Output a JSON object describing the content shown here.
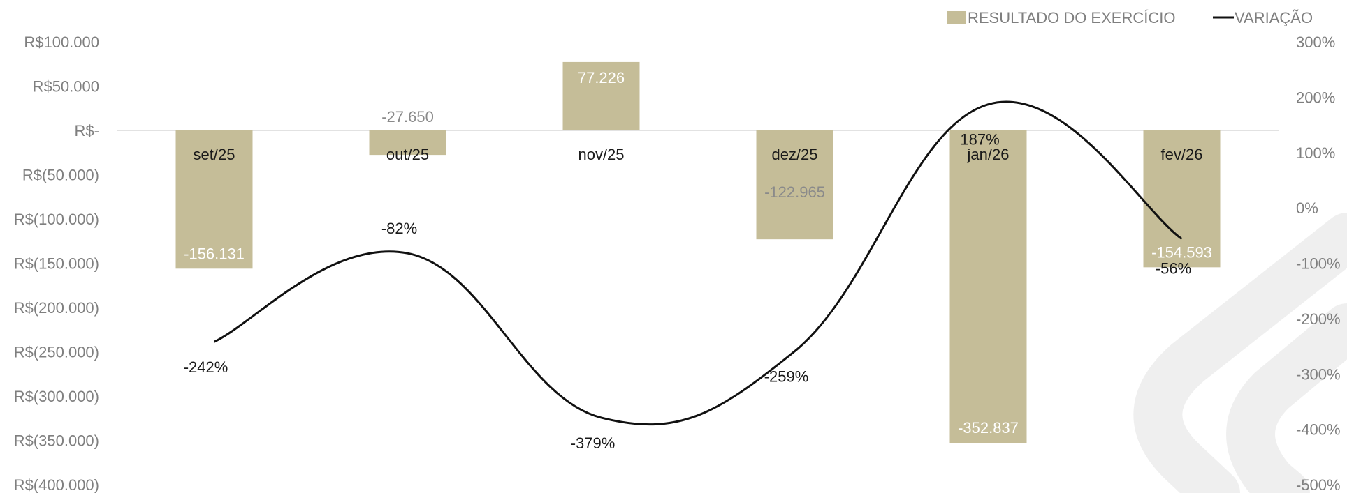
{
  "chart_data": {
    "type": "bar",
    "categories": [
      "set/25",
      "out/25",
      "nov/25",
      "dez/25",
      "jan/26",
      "fev/26"
    ],
    "series": [
      {
        "name": "RESULTADO DO EXERCÍCIO",
        "type": "bar",
        "axis": "left",
        "values": [
          -156131,
          -27650,
          77226,
          -122965,
          -352837,
          -154593
        ],
        "value_labels": [
          "-156.131",
          "-27.650",
          "77.226",
          "-122.965",
          "-352.837",
          "-154.593"
        ],
        "color": "#c5bd98"
      },
      {
        "name": "VARIAÇÃO",
        "type": "line",
        "axis": "right",
        "values": [
          -242,
          -82,
          -379,
          -259,
          187,
          -56
        ],
        "value_labels": [
          "-242%",
          "-82%",
          "-379%",
          "-259%",
          "187%",
          "-56%"
        ],
        "color": "#111111"
      }
    ],
    "y_left": {
      "ylim": [
        -400000,
        100000
      ],
      "ticks": [
        100000,
        50000,
        0,
        -50000,
        -100000,
        -150000,
        -200000,
        -250000,
        -300000,
        -350000,
        -400000
      ],
      "tick_labels": [
        "R$100.000",
        "R$50.000",
        "R$-",
        "R$(50.000)",
        "R$(100.000)",
        "R$(150.000)",
        "R$(200.000)",
        "R$(250.000)",
        "R$(300.000)",
        "R$(350.000)",
        "R$(400.000)"
      ]
    },
    "y_right": {
      "ylim": [
        -500,
        300
      ],
      "ticks": [
        300,
        200,
        100,
        0,
        -100,
        -200,
        -300,
        -400,
        -500
      ],
      "tick_labels": [
        "300%",
        "200%",
        "100%",
        "0%",
        "-100%",
        "-200%",
        "-300%",
        "-400%",
        "-500%"
      ]
    },
    "legend": {
      "position": "top-right",
      "items": [
        {
          "label": "RESULTADO DO EXERCÍCIO",
          "marker": "square",
          "color": "#c5bd98"
        },
        {
          "label": "VARIAÇÃO",
          "marker": "line",
          "color": "#111111"
        }
      ]
    },
    "grid": false,
    "zero_line": true
  }
}
